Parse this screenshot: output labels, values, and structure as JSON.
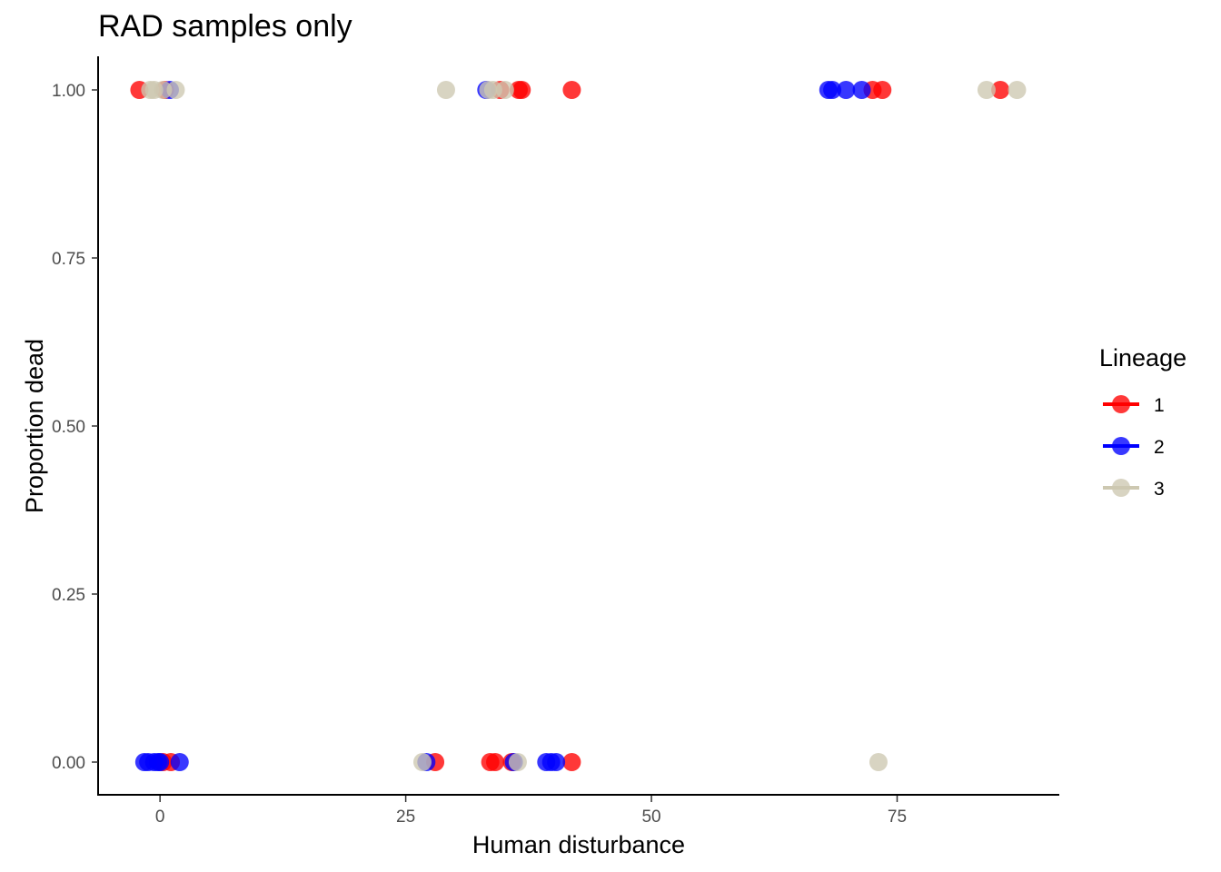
{
  "chart_data": {
    "type": "scatter",
    "title": "RAD samples only",
    "xlabel": "Human disturbance",
    "ylabel": "Proportion dead",
    "xlim": [
      -6.3,
      91.5
    ],
    "ylim": [
      -0.05,
      1.05
    ],
    "x_ticks": [
      0,
      25,
      50,
      75
    ],
    "x_tick_labels": [
      "0",
      "25",
      "50",
      "75"
    ],
    "y_ticks": [
      0,
      0.25,
      0.5,
      0.75,
      1.0
    ],
    "y_tick_labels": [
      "0.00",
      "0.25",
      "0.50",
      "0.75",
      "1.00"
    ],
    "grid": false,
    "legend": {
      "title": "Lineage",
      "position": "right",
      "items": [
        {
          "label": "1",
          "color": "#ff0000"
        },
        {
          "label": "2",
          "color": "#0000ff"
        },
        {
          "label": "3",
          "color": "#cdc8b1"
        }
      ]
    },
    "point_opacity": 0.78,
    "series": [
      {
        "name": "1",
        "color": "#ff0000",
        "points": [
          [
            -2.1,
            1
          ],
          [
            0.5,
            1
          ],
          [
            34.6,
            1
          ],
          [
            36.5,
            1
          ],
          [
            36.8,
            1
          ],
          [
            41.9,
            1
          ],
          [
            72.5,
            1
          ],
          [
            73.5,
            1
          ],
          [
            85.5,
            1
          ],
          [
            0.3,
            0
          ],
          [
            1.1,
            0
          ],
          [
            28.0,
            0
          ],
          [
            33.6,
            0
          ],
          [
            34.1,
            0
          ],
          [
            35.8,
            0
          ],
          [
            41.9,
            0
          ]
        ]
      },
      {
        "name": "2",
        "color": "#0000ff",
        "points": [
          [
            1.0,
            1
          ],
          [
            33.2,
            1
          ],
          [
            68.0,
            1
          ],
          [
            68.4,
            1
          ],
          [
            69.8,
            1
          ],
          [
            71.4,
            1
          ],
          [
            -1.6,
            0
          ],
          [
            -1.2,
            0
          ],
          [
            -0.6,
            0
          ],
          [
            -0.2,
            0
          ],
          [
            0.0,
            0
          ],
          [
            2.0,
            0
          ],
          [
            27.1,
            0
          ],
          [
            36.0,
            0
          ],
          [
            39.3,
            0
          ],
          [
            39.8,
            0
          ],
          [
            40.3,
            0
          ]
        ]
      },
      {
        "name": "3",
        "color": "#cdc8b1",
        "points": [
          [
            -1.0,
            1
          ],
          [
            -0.6,
            1
          ],
          [
            0.3,
            1
          ],
          [
            1.6,
            1
          ],
          [
            29.1,
            1
          ],
          [
            33.4,
            1
          ],
          [
            33.9,
            1
          ],
          [
            35.1,
            1
          ],
          [
            84.1,
            1
          ],
          [
            87.2,
            1
          ],
          [
            26.7,
            0
          ],
          [
            36.4,
            0
          ],
          [
            73.1,
            0
          ]
        ]
      }
    ]
  }
}
